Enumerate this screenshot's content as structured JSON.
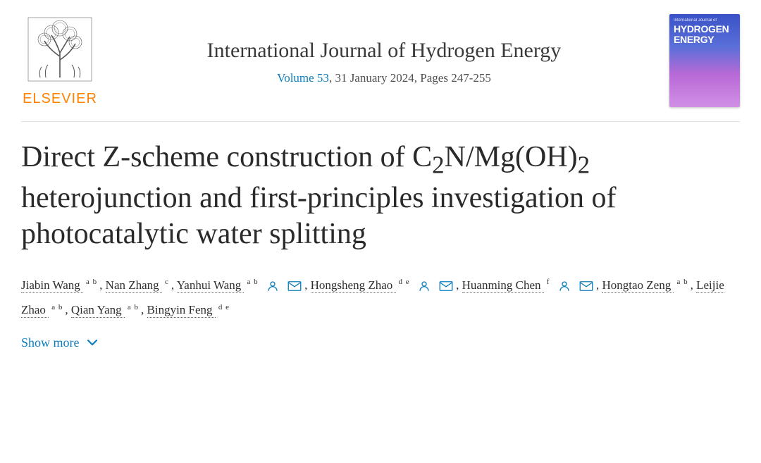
{
  "publisher": {
    "name": "ELSEVIER"
  },
  "journal": {
    "title": "International Journal of Hydrogen Energy",
    "volume_link": "Volume 53",
    "date_pages": ", 31 January 2024, Pages 247-255",
    "cover_label_small": "International Journal of",
    "cover_label_1": "HYDROGEN",
    "cover_label_2": "ENERGY"
  },
  "article": {
    "title_parts": {
      "p1": "Direct Z-scheme construction of C",
      "sub1": "2",
      "p2": "N/Mg(OH)",
      "sub2": "2",
      "p3": " heterojunction and first-principles investigation of photocatalytic water splitting"
    }
  },
  "authors": [
    {
      "name": "Jiabin Wang",
      "aff": "a b",
      "person": false,
      "mail": false,
      "trail": ", "
    },
    {
      "name": "Nan Zhang",
      "aff": "c",
      "person": false,
      "mail": false,
      "trail": ", "
    },
    {
      "name": "Yanhui Wang",
      "aff": "a b",
      "person": true,
      "mail": true,
      "trail": ", "
    },
    {
      "name": "Hongsheng Zhao",
      "aff": "d e",
      "person": true,
      "mail": true,
      "trail": ", "
    },
    {
      "name": "Huanming Chen",
      "aff": "f",
      "person": true,
      "mail": true,
      "trail": ", "
    },
    {
      "name": "Hongtao Zeng",
      "aff": "a b",
      "person": false,
      "mail": false,
      "trail": ", "
    },
    {
      "name": "Leijie Zhao",
      "aff": "a b",
      "person": false,
      "mail": false,
      "trail": ", "
    },
    {
      "name": "Qian Yang",
      "aff": "a b",
      "person": false,
      "mail": false,
      "trail": ", "
    },
    {
      "name": "Bingyin Feng",
      "aff": "d e",
      "person": false,
      "mail": false,
      "trail": ""
    }
  ],
  "show_more": "Show more",
  "colors": {
    "link": "#0c7dbb",
    "brand": "#ff8200",
    "text": "#2e2e2e"
  }
}
